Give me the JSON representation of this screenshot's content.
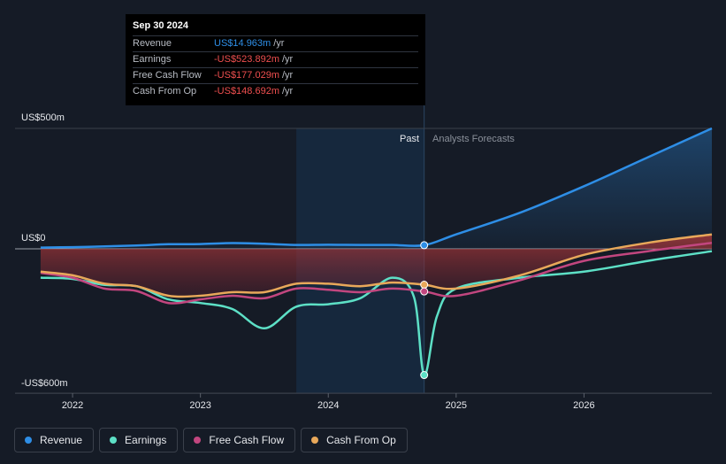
{
  "tooltip": {
    "date": "Sep 30 2024",
    "rows": [
      {
        "label": "Revenue",
        "value": "US$14.963m",
        "unit": "/yr",
        "color": "#2e8ee6"
      },
      {
        "label": "Earnings",
        "value": "-US$523.892m",
        "unit": "/yr",
        "color": "#ef4f4f"
      },
      {
        "label": "Free Cash Flow",
        "value": "-US$177.029m",
        "unit": "/yr",
        "color": "#ef4f4f"
      },
      {
        "label": "Cash From Op",
        "value": "-US$148.692m",
        "unit": "/yr",
        "color": "#ef4f4f"
      }
    ]
  },
  "legend": [
    {
      "label": "Revenue",
      "color": "#2e8ee6",
      "icon": "revenue-dot-icon"
    },
    {
      "label": "Earnings",
      "color": "#5de0c6",
      "icon": "earnings-dot-icon"
    },
    {
      "label": "Free Cash Flow",
      "color": "#c2467f",
      "icon": "free-cash-flow-dot-icon"
    },
    {
      "label": "Cash From Op",
      "color": "#e8a85a",
      "icon": "cash-from-op-dot-icon"
    }
  ],
  "chart_data": {
    "type": "line",
    "y_tick_labels": [
      "US$500m",
      "US$0",
      "-US$600m"
    ],
    "y_ticks": [
      500,
      0,
      -600
    ],
    "ylim": [
      -600,
      500
    ],
    "x_tick_labels": [
      "2022",
      "2023",
      "2024",
      "2025",
      "2026"
    ],
    "x_ticks": [
      2022,
      2023,
      2024,
      2025,
      2026
    ],
    "xlim": [
      2021.55,
      2027
    ],
    "past_label": "Past",
    "forecast_label": "Analysts Forecasts",
    "highlight_start": 2023.75,
    "divider_x": 2024.75,
    "grid": true,
    "legend_position": "bottom-left",
    "series": [
      {
        "name": "Revenue",
        "color": "#2e8ee6",
        "x": [
          2021.75,
          2022.0,
          2022.25,
          2022.5,
          2022.75,
          2023.0,
          2023.25,
          2023.5,
          2023.75,
          2024.0,
          2024.25,
          2024.5,
          2024.75,
          2025.0,
          2025.5,
          2026.0,
          2026.5,
          2027.0
        ],
        "values": [
          5,
          7,
          10,
          14,
          19,
          20,
          24,
          21,
          16,
          17,
          16,
          16,
          15,
          60,
          150,
          260,
          380,
          500
        ]
      },
      {
        "name": "Earnings",
        "color": "#5de0c6",
        "x": [
          2021.75,
          2022.0,
          2022.25,
          2022.5,
          2022.75,
          2023.0,
          2023.25,
          2023.5,
          2023.75,
          2024.0,
          2024.25,
          2024.5,
          2024.67,
          2024.75,
          2024.85,
          2025.0,
          2025.5,
          2026.0,
          2026.5,
          2027.0
        ],
        "values": [
          -120,
          -125,
          -150,
          -155,
          -210,
          -225,
          -250,
          -330,
          -240,
          -230,
          -205,
          -120,
          -200,
          -524,
          -280,
          -165,
          -120,
          -95,
          -50,
          -10
        ]
      },
      {
        "name": "Free Cash Flow",
        "color": "#c2467f",
        "x": [
          2021.75,
          2022.0,
          2022.25,
          2022.5,
          2022.75,
          2023.0,
          2023.25,
          2023.5,
          2023.75,
          2024.0,
          2024.25,
          2024.5,
          2024.75,
          2025.0,
          2025.5,
          2026.0,
          2026.5,
          2027.0
        ],
        "values": [
          -100,
          -120,
          -165,
          -175,
          -225,
          -210,
          -195,
          -205,
          -165,
          -170,
          -180,
          -165,
          -177,
          -195,
          -130,
          -50,
          -10,
          25
        ]
      },
      {
        "name": "Cash From Op",
        "color": "#e8a85a",
        "x": [
          2021.75,
          2022.0,
          2022.25,
          2022.5,
          2022.75,
          2023.0,
          2023.25,
          2023.5,
          2023.75,
          2024.0,
          2024.25,
          2024.5,
          2024.75,
          2025.0,
          2025.5,
          2026.0,
          2026.5,
          2027.0
        ],
        "values": [
          -95,
          -110,
          -145,
          -155,
          -195,
          -195,
          -180,
          -180,
          -145,
          -145,
          -155,
          -140,
          -149,
          -165,
          -110,
          -25,
          25,
          60
        ]
      }
    ]
  }
}
